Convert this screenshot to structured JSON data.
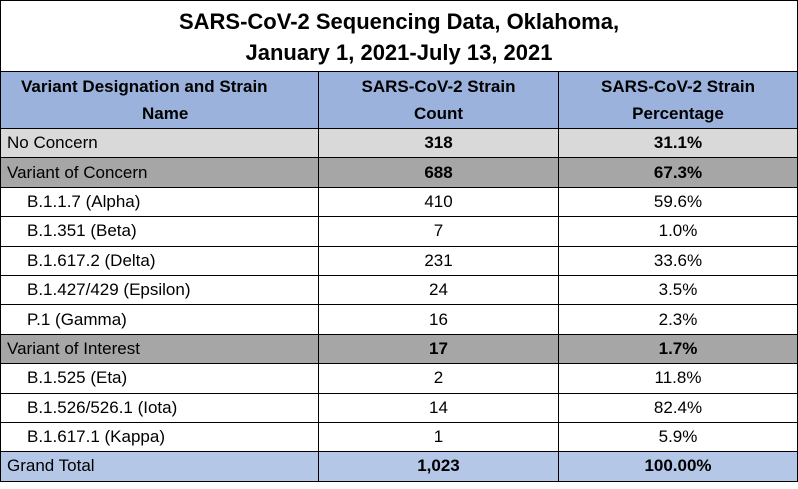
{
  "title_line1": "SARS-CoV-2 Sequencing Data, Oklahoma,",
  "title_line2": "January 1, 2021-July 13, 2021",
  "headers": {
    "col1_line1": "Variant Designation and Strain",
    "col1_line2": "Name",
    "col2_line1": "SARS-CoV-2 Strain",
    "col2_line2": "Count",
    "col3_line1": "SARS-CoV-2 Strain",
    "col3_line2": "Percentage"
  },
  "rows": [
    {
      "name": "No Concern",
      "count": "318",
      "percent": "31.1%"
    },
    {
      "name": "Variant of Concern",
      "count": "688",
      "percent": "67.3%"
    },
    {
      "name": "B.1.1.7 (Alpha)",
      "count": "410",
      "percent": "59.6%"
    },
    {
      "name": "B.1.351 (Beta)",
      "count": "7",
      "percent": "1.0%"
    },
    {
      "name": "B.1.617.2 (Delta)",
      "count": "231",
      "percent": "33.6%"
    },
    {
      "name": "B.1.427/429 (Epsilon)",
      "count": "24",
      "percent": "3.5%"
    },
    {
      "name": "P.1 (Gamma)",
      "count": "16",
      "percent": "2.3%"
    },
    {
      "name": "Variant of Interest",
      "count": "17",
      "percent": "1.7%"
    },
    {
      "name": "B.1.525 (Eta)",
      "count": "2",
      "percent": "11.8%"
    },
    {
      "name": "B.1.526/526.1 (Iota)",
      "count": "14",
      "percent": "82.4%"
    },
    {
      "name": "B.1.617.1 (Kappa)",
      "count": "1",
      "percent": "5.9%"
    }
  ],
  "total": {
    "name": "Grand Total",
    "count": "1,023",
    "percent": "100.00%"
  }
}
